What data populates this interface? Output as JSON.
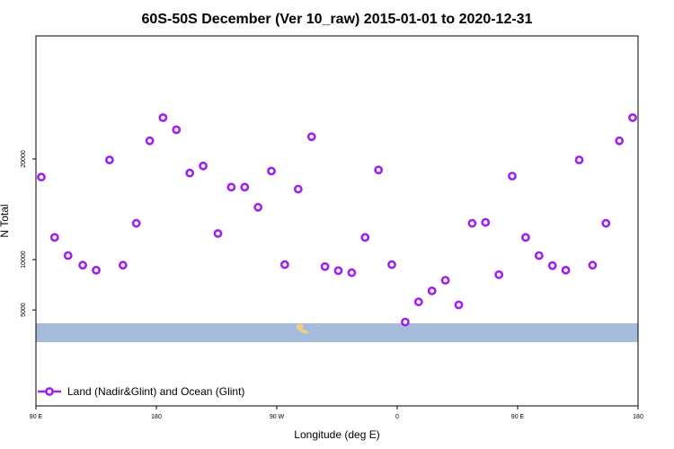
{
  "chart_data": {
    "type": "scatter",
    "title": "60S-50S December (Ver 10_raw)   2015-01-01 to 2020-12-31",
    "xlabel": "Longitude (deg E)",
    "ylabel": "N Total",
    "x_ticks": [
      {
        "value": -90,
        "label": "90 E"
      },
      {
        "value": 0,
        "label": "180"
      },
      {
        "value": 90,
        "label": "90 W"
      },
      {
        "value": 180,
        "label": "0"
      },
      {
        "value": 270,
        "label": "90 E"
      },
      {
        "value": 360,
        "label": "180"
      }
    ],
    "y_ticks": [
      {
        "value": 5000,
        "label": "5000"
      },
      {
        "value": 10000,
        "label": "10000"
      },
      {
        "value": 20000,
        "label": "20000"
      }
    ],
    "ylim": [
      3000,
      25000
    ],
    "xlim": [
      -90,
      360
    ],
    "grid": false,
    "legend_position": "bottom-left",
    "series": [
      {
        "name": "Land (Nadir&Glint) and Ocean (Glint)",
        "color": "#a020f0",
        "x": [
          -86,
          -76,
          -66,
          -55,
          -45,
          -35,
          -25,
          -15,
          -5,
          5,
          15,
          25,
          35,
          46,
          56,
          66,
          76,
          86,
          96,
          106,
          116,
          126,
          136,
          146,
          156,
          166,
          176,
          186,
          196,
          206,
          216,
          226,
          236,
          246,
          256,
          266,
          276,
          286,
          296,
          306,
          316,
          326,
          336,
          346,
          356
        ],
        "y": [
          18200,
          12200,
          10400,
          9450,
          8950,
          19900,
          9450,
          13600,
          21800,
          24100,
          22900,
          18600,
          19300,
          12600,
          17200,
          17200,
          15200,
          18800,
          9500,
          17000,
          22200,
          9300,
          8900,
          8700,
          12200,
          18900,
          9500,
          3800,
          5800,
          6900,
          7950,
          5500,
          13600,
          13700,
          8500,
          18300,
          12200,
          10400,
          9400,
          8950,
          19900,
          9450,
          13600,
          21800,
          24100
        ]
      }
    ]
  }
}
